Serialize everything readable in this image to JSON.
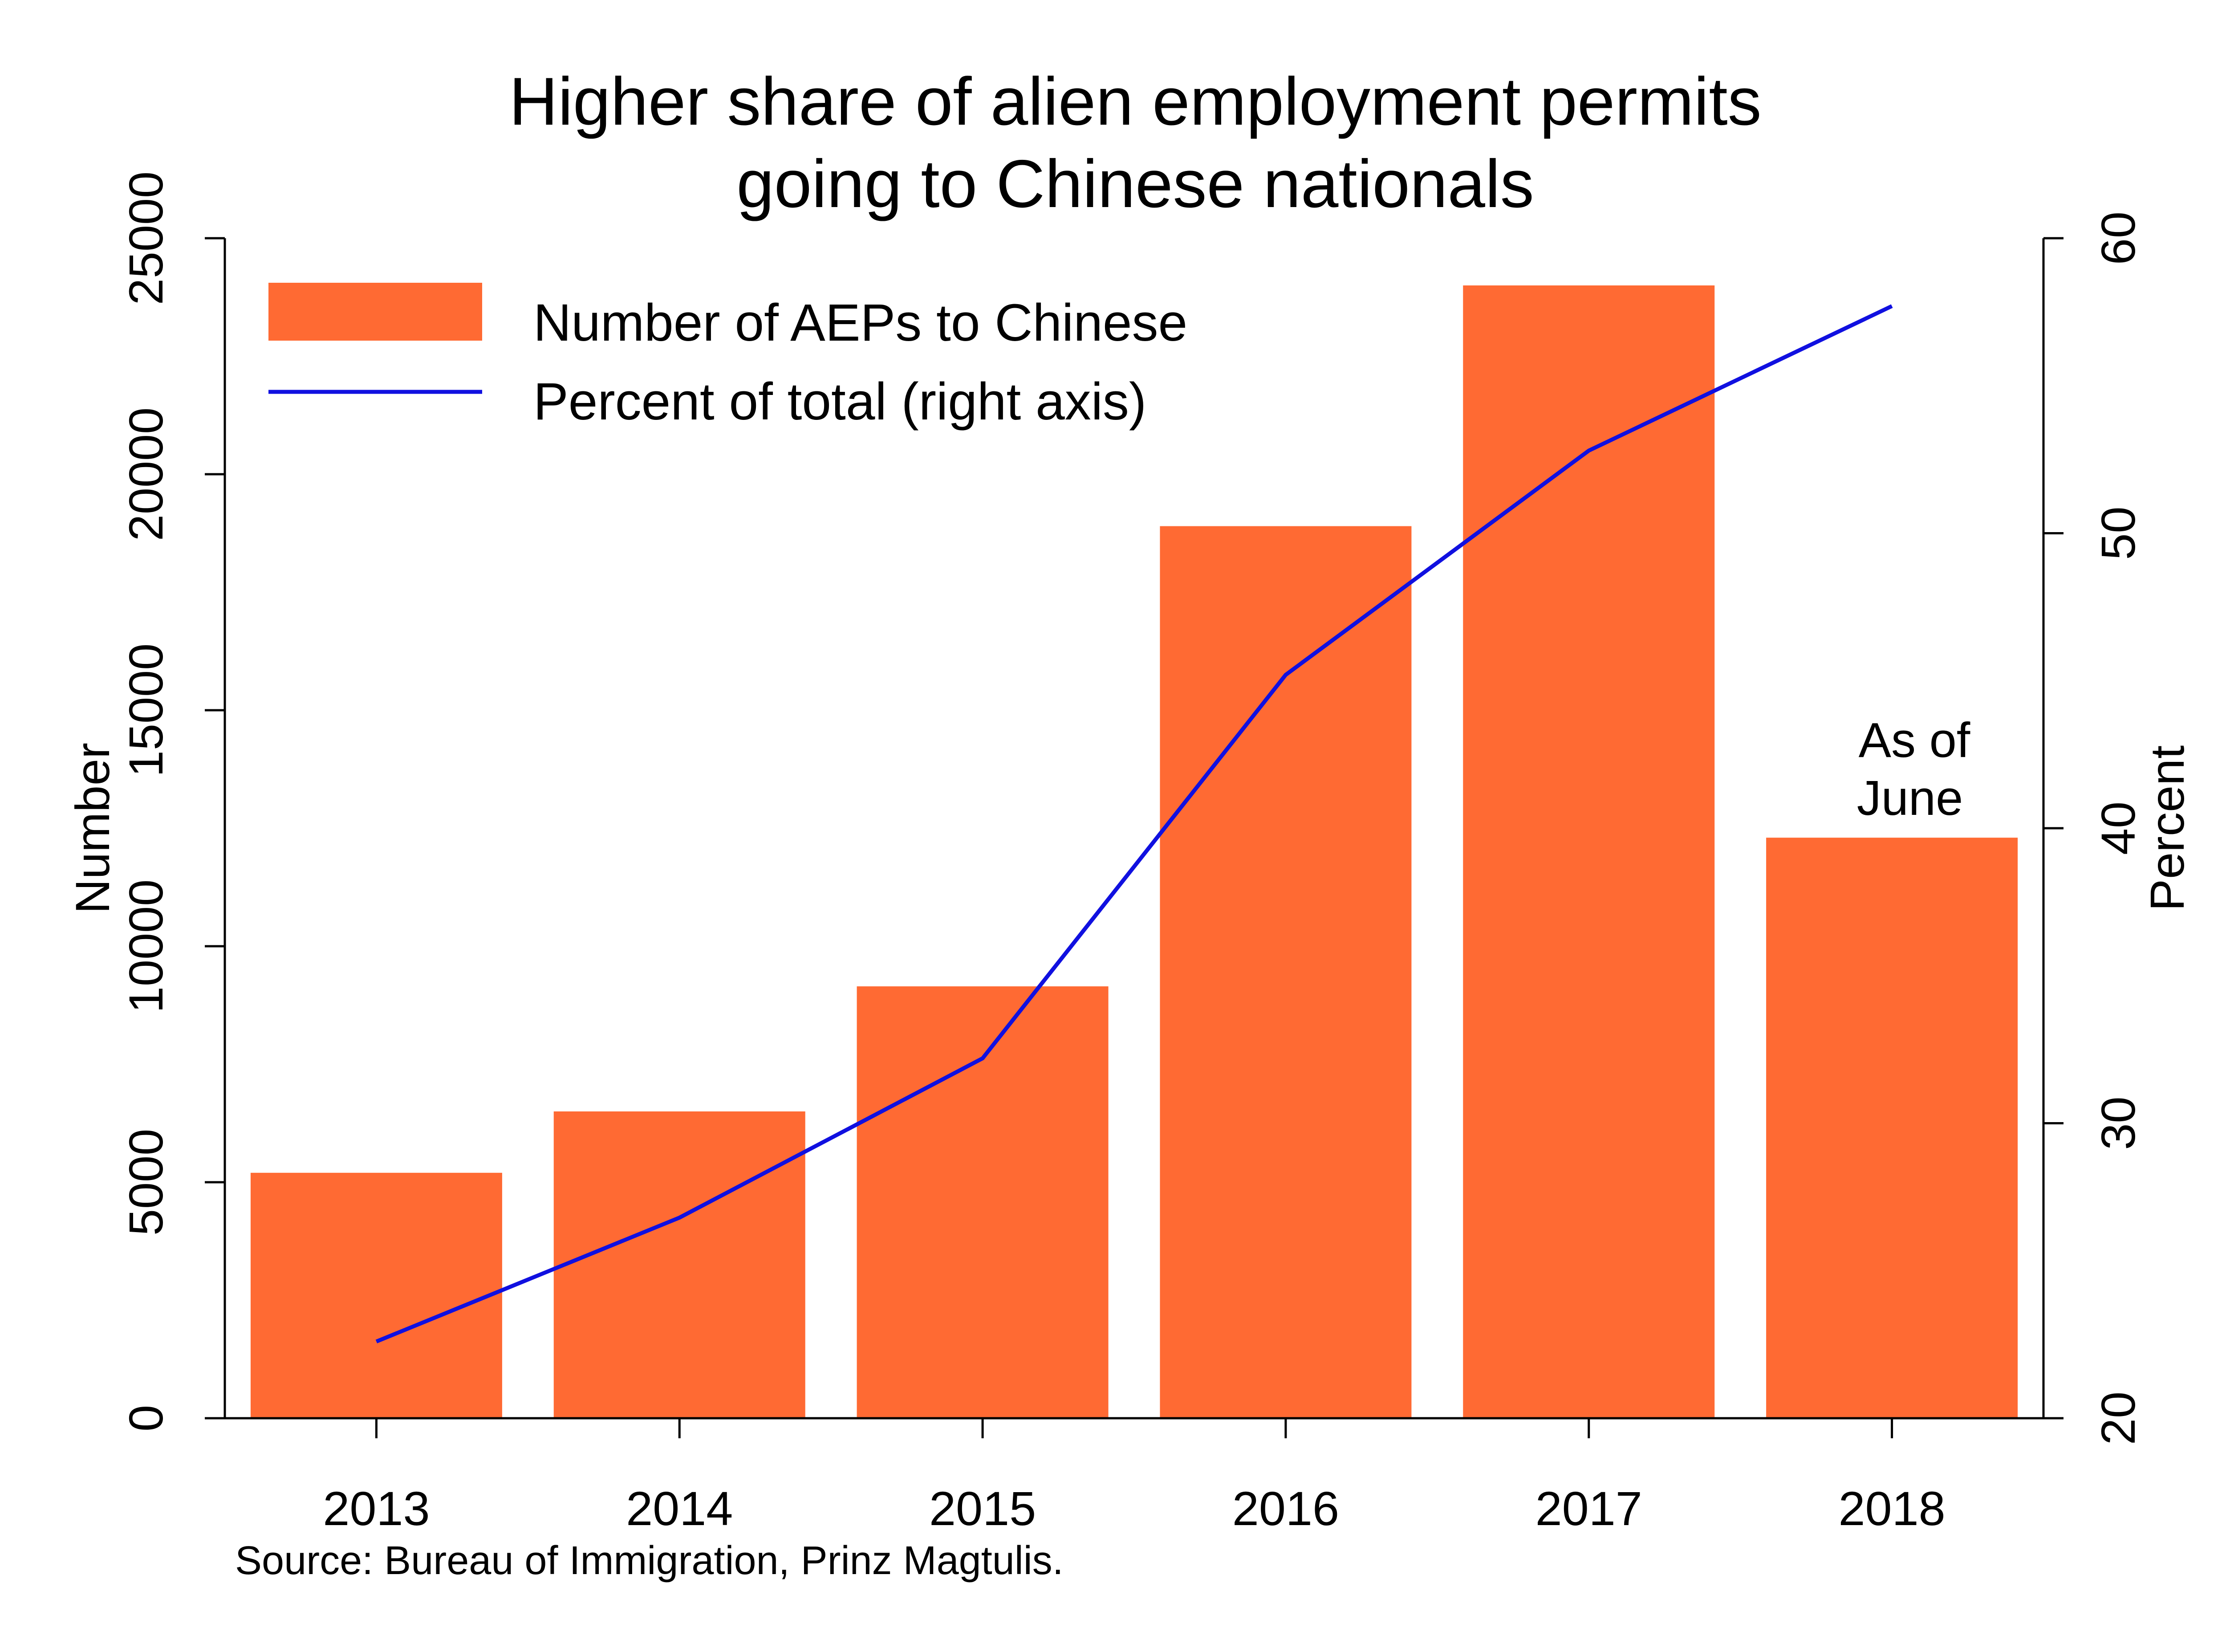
{
  "chart_data": {
    "type": "bar",
    "title": [
      "Higher share of alien employment permits",
      "going to Chinese nationals"
    ],
    "categories": [
      "2013",
      "2014",
      "2015",
      "2016",
      "2017",
      "2018"
    ],
    "ylabel_left": "Number",
    "ylabel_right": "Percent",
    "ylim_left": [
      0,
      25000
    ],
    "ylim_right": [
      20,
      60
    ],
    "yticks_left": [
      "0",
      "5000",
      "10000",
      "15000",
      "20000",
      "25000"
    ],
    "yticks_right": [
      "20",
      "30",
      "40",
      "50",
      "60"
    ],
    "series": [
      {
        "name": "Number of AEPs to Chinese",
        "type": "bar",
        "axis": "left",
        "color": "#ff6a33",
        "values": [
          5200,
          6500,
          9150,
          18900,
          24000,
          12300
        ]
      },
      {
        "name": "Percent of total (right axis)",
        "type": "line",
        "axis": "right",
        "color": "#1010e0",
        "values": [
          22.6,
          26.8,
          32.2,
          45.2,
          52.8,
          57.7
        ]
      }
    ],
    "annotation": [
      "As of",
      "June"
    ],
    "source": "Source: Bureau of Immigration, Prinz Magtulis.",
    "legend_position": "top-left",
    "grid": false
  }
}
